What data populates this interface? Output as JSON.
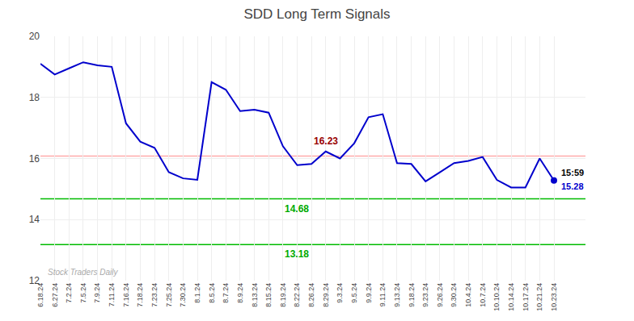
{
  "chart_data": {
    "type": "line",
    "title": "SDD Long Term Signals",
    "categories": [
      "6.18.24",
      "6.27.24",
      "7.2.24",
      "7.5.24",
      "7.9.24",
      "7.11.24",
      "7.16.24",
      "7.18.24",
      "7.23.24",
      "7.25.24",
      "7.30.24",
      "8.1.24",
      "8.5.24",
      "8.7.24",
      "8.9.24",
      "8.13.24",
      "8.15.24",
      "8.19.24",
      "8.22.24",
      "8.26.24",
      "8.29.24",
      "9.3.24",
      "9.5.24",
      "9.9.24",
      "9.11.24",
      "9.13.24",
      "9.18.24",
      "9.23.24",
      "9.26.24",
      "9.30.24",
      "10.4.24",
      "10.7.24",
      "10.10.24",
      "10.14.24",
      "10.17.24",
      "10.21.24",
      "10.23.24"
    ],
    "values": [
      19.1,
      18.75,
      18.95,
      19.15,
      19.05,
      19.0,
      17.15,
      16.55,
      16.35,
      15.55,
      15.35,
      15.3,
      18.5,
      18.25,
      17.55,
      17.6,
      17.5,
      16.4,
      15.78,
      15.82,
      16.23,
      16.0,
      16.5,
      17.35,
      17.45,
      15.85,
      15.82,
      15.25,
      15.55,
      15.85,
      15.92,
      16.05,
      15.3,
      15.05,
      15.05,
      16.0,
      15.28
    ],
    "color": "#0000cc",
    "hlines": [
      {
        "value": 16.08,
        "color": "#ffaaaa"
      },
      {
        "value": 14.68,
        "color": "#00bb00"
      },
      {
        "value": 13.18,
        "color": "#00bb00"
      }
    ],
    "annotations": [
      {
        "text": "16.23",
        "color": "#990000",
        "x": "8.29.24",
        "y": 16.23
      },
      {
        "text": "14.68",
        "color": "#00aa00",
        "x": "8.19.24",
        "y": 14.68
      },
      {
        "text": "13.18",
        "color": "#00aa00",
        "x": "8.19.24",
        "y": 13.18
      },
      {
        "text": "15:59",
        "color": "#000000",
        "x": "10.23.24",
        "y": 15.28
      },
      {
        "text": "15.28",
        "color": "#0000cc",
        "x": "10.23.24",
        "y": 15.28
      },
      {
        "text": "Stock Traders Daily",
        "color": "#aaaaaa"
      }
    ],
    "ylim": [
      12,
      20
    ],
    "yticks": [
      12,
      14,
      16,
      18,
      20
    ],
    "grid": true
  }
}
